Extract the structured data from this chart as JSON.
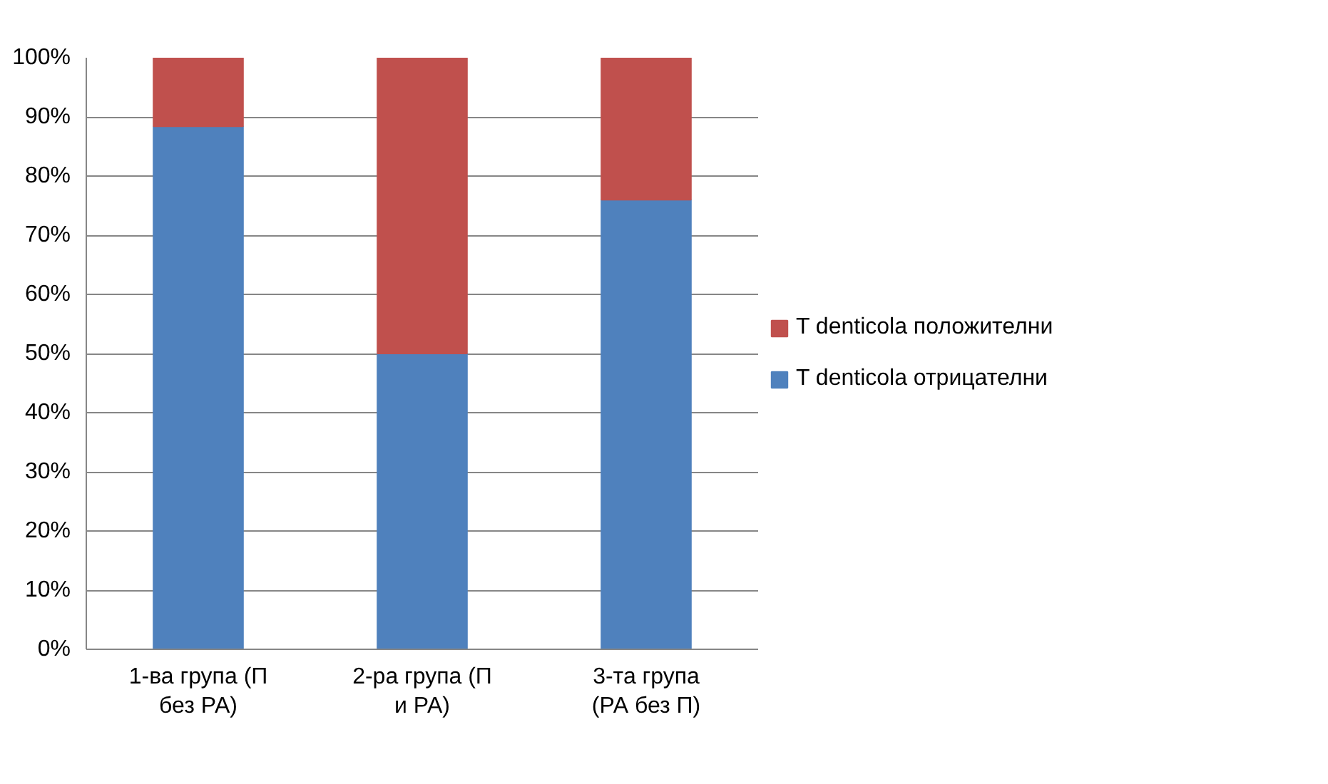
{
  "chart_data": {
    "type": "bar",
    "stacked": true,
    "categories": [
      "1-ва група (П без РА)",
      "2-ра група (П и РА)",
      "3-та група (РА без П)"
    ],
    "series": [
      {
        "name": "T denticola отрицателни",
        "color": "#4f81bd",
        "values": [
          88.4,
          50,
          76
        ]
      },
      {
        "name": "T denticola положителни",
        "color": "#c0504d",
        "values": [
          11.6,
          50,
          24
        ]
      }
    ],
    "ylim": [
      0,
      100
    ],
    "yticks": [
      {
        "value": 0,
        "label": "0%"
      },
      {
        "value": 10,
        "label": "10%"
      },
      {
        "value": 20,
        "label": "20%"
      },
      {
        "value": 30,
        "label": "30%"
      },
      {
        "value": 40,
        "label": "40%"
      },
      {
        "value": 50,
        "label": "50%"
      },
      {
        "value": 60,
        "label": "60%"
      },
      {
        "value": 70,
        "label": "70%"
      },
      {
        "value": 80,
        "label": "80%"
      },
      {
        "value": 90,
        "label": "90%"
      },
      {
        "value": 100,
        "label": "100%"
      }
    ],
    "grid": "y",
    "legend": "right"
  }
}
